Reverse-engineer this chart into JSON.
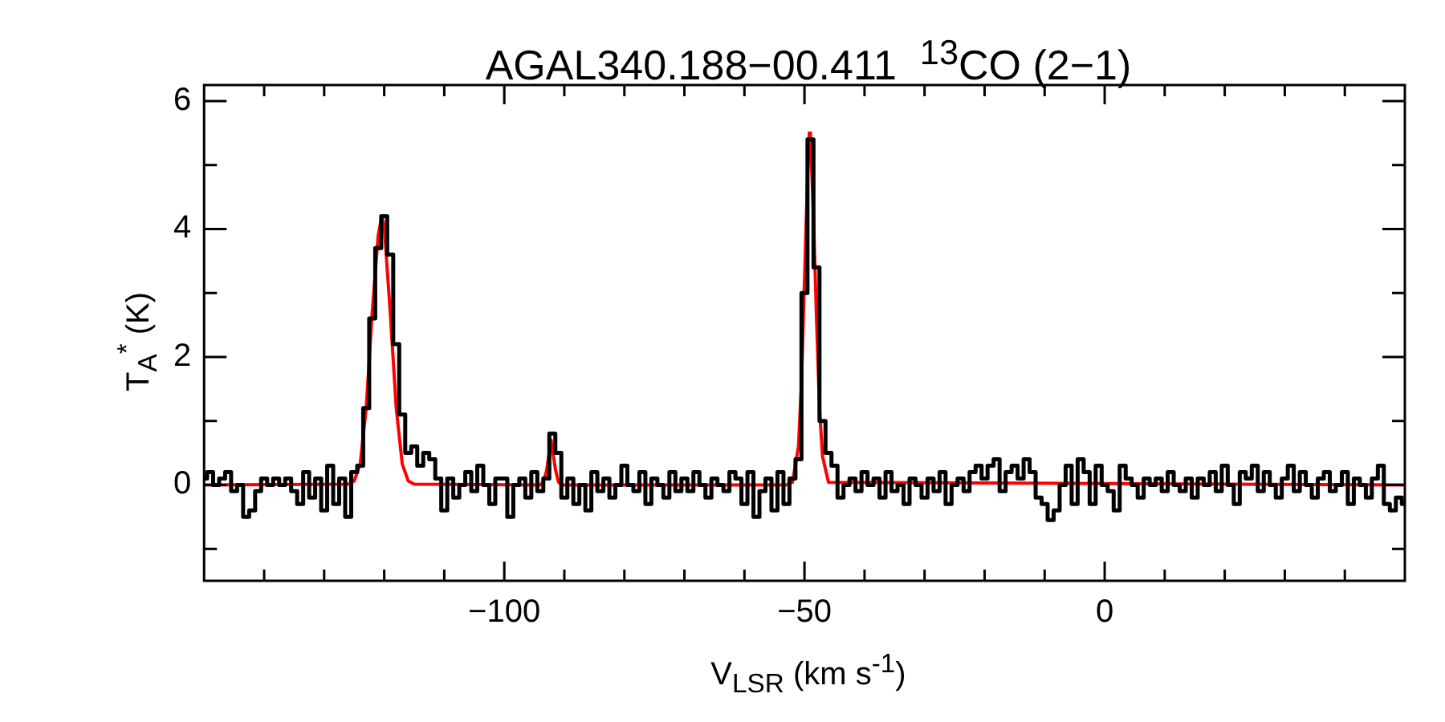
{
  "chart_data": {
    "type": "line",
    "title": "AGAL340.188−00.411  $^{13}$CO (2−1)",
    "xlabel": "V$_{LSR}$ (km s$^{-1}$)",
    "ylabel": "T$_{A}$$^{*}$ (K)",
    "xlim": [
      -150,
      50
    ],
    "ylim": [
      -1.5,
      6.25
    ],
    "xticks": [
      {
        "value": -140,
        "label": null
      },
      {
        "value": -130,
        "label": null
      },
      {
        "value": -120,
        "label": null
      },
      {
        "value": -110,
        "label": null
      },
      {
        "value": -100,
        "label": "−100"
      },
      {
        "value": -90,
        "label": null
      },
      {
        "value": -80,
        "label": null
      },
      {
        "value": -70,
        "label": null
      },
      {
        "value": -60,
        "label": null
      },
      {
        "value": -50,
        "label": "−50"
      },
      {
        "value": -40,
        "label": null
      },
      {
        "value": -30,
        "label": null
      },
      {
        "value": -20,
        "label": null
      },
      {
        "value": -10,
        "label": null
      },
      0,
      {
        "value": 10,
        "label": null
      },
      {
        "value": 20,
        "label": null
      },
      {
        "value": 30,
        "label": null
      },
      {
        "value": 40,
        "label": null
      }
    ],
    "yticks": [
      {
        "value": -1,
        "label": null
      },
      0,
      {
        "value": 1,
        "label": null
      },
      2,
      {
        "value": 3,
        "label": null
      },
      4,
      {
        "value": 5,
        "label": null
      },
      6
    ],
    "series": [
      {
        "type": "step",
        "color": "#000000",
        "x": [
          -150,
          -149,
          -148,
          -147,
          -146,
          -145,
          -144,
          -143,
          -142,
          -141,
          -140,
          -139,
          -138,
          -137,
          -136,
          -135,
          -134,
          -133,
          -132,
          -131,
          -130,
          -129,
          -128,
          -127,
          -126,
          -125,
          -124,
          -123,
          -122,
          -121,
          -120,
          -119,
          -118,
          -117,
          -116,
          -115,
          -114,
          -113,
          -112,
          -111,
          -110,
          -109,
          -108,
          -107,
          -106,
          -105,
          -104,
          -103,
          -102,
          -101,
          -100,
          -99,
          -98,
          -97,
          -96,
          -95,
          -94,
          -93,
          -92,
          -91,
          -90,
          -89,
          -88,
          -87,
          -86,
          -85,
          -84,
          -83,
          -82,
          -81,
          -80,
          -79,
          -78,
          -77,
          -76,
          -75,
          -74,
          -73,
          -72,
          -71,
          -70,
          -69,
          -68,
          -67,
          -66,
          -65,
          -64,
          -63,
          -62,
          -61,
          -60,
          -59,
          -58,
          -57,
          -56,
          -55,
          -54,
          -53,
          -52,
          -51,
          -50,
          -49,
          -48,
          -47,
          -46,
          -45,
          -44,
          -43,
          -42,
          -41,
          -40,
          -39,
          -38,
          -37,
          -36,
          -35,
          -34,
          -33,
          -32,
          -31,
          -30,
          -29,
          -28,
          -27,
          -26,
          -25,
          -24,
          -23,
          -22,
          -21,
          -20,
          -19,
          -18,
          -17,
          -16,
          -15,
          -14,
          -13,
          -12,
          -11,
          -10,
          -9,
          -8,
          -7,
          -6,
          -5,
          -4,
          -3,
          -2,
          -1,
          0,
          1,
          2,
          3,
          4,
          5,
          6,
          7,
          8,
          9,
          10,
          11,
          12,
          13,
          14,
          15,
          16,
          17,
          18,
          19,
          20,
          21,
          22,
          23,
          24,
          25,
          26,
          27,
          28,
          29,
          30,
          31,
          32,
          33,
          34,
          35,
          36,
          37,
          38,
          39,
          40,
          41,
          42,
          43,
          44,
          45,
          46,
          47,
          48,
          49,
          50
        ],
        "values": [
          0.1,
          0.2,
          0.0,
          0.1,
          0.2,
          -0.1,
          0.0,
          -0.5,
          -0.4,
          -0.1,
          0.1,
          0.0,
          0.1,
          0.0,
          0.1,
          -0.1,
          -0.3,
          0.2,
          -0.2,
          0.1,
          -0.4,
          0.3,
          -0.3,
          0.1,
          -0.5,
          0.2,
          0.3,
          1.2,
          2.6,
          3.7,
          4.2,
          3.6,
          2.2,
          1.1,
          0.5,
          0.6,
          0.3,
          0.5,
          0.4,
          0.1,
          -0.4,
          0.1,
          -0.2,
          0.0,
          0.2,
          -0.1,
          0.3,
          0.0,
          -0.3,
          0.1,
          0.1,
          -0.5,
          0.0,
          0.1,
          -0.2,
          0.2,
          -0.1,
          0.1,
          0.8,
          0.5,
          -0.2,
          0.1,
          -0.3,
          0.0,
          -0.4,
          0.2,
          -0.1,
          0.1,
          -0.2,
          0.0,
          0.3,
          0.0,
          -0.1,
          0.2,
          -0.3,
          0.1,
          0.0,
          -0.2,
          0.2,
          -0.1,
          0.1,
          -0.1,
          0.2,
          0.0,
          -0.2,
          0.1,
          0.0,
          -0.1,
          0.2,
          0.1,
          -0.3,
          0.2,
          -0.5,
          -0.1,
          0.1,
          -0.4,
          0.2,
          -0.3,
          0.1,
          0.4,
          3.0,
          5.4,
          3.4,
          1.0,
          0.5,
          0.3,
          -0.2,
          0.0,
          0.1,
          -0.1,
          0.2,
          0.0,
          0.1,
          -0.2,
          0.2,
          -0.1,
          0.0,
          -0.3,
          0.1,
          0.0,
          -0.2,
          0.1,
          -0.1,
          0.2,
          -0.3,
          0.0,
          0.1,
          -0.1,
          0.2,
          0.3,
          0.1,
          0.3,
          0.4,
          -0.1,
          0.2,
          0.3,
          0.1,
          0.4,
          0.2,
          -0.2,
          -0.3,
          -0.55,
          -0.4,
          0.0,
          0.3,
          -0.3,
          0.4,
          0.2,
          -0.3,
          0.3,
          0.0,
          -0.1,
          -0.4,
          0.3,
          0.1,
          0.0,
          -0.2,
          0.1,
          0.0,
          0.1,
          -0.1,
          0.2,
          0.0,
          -0.1,
          0.1,
          -0.2,
          0.1,
          0.0,
          0.2,
          -0.1,
          0.3,
          0.0,
          -0.3,
          0.2,
          0.1,
          0.3,
          -0.1,
          0.2,
          0.0,
          -0.2,
          0.1,
          0.3,
          -0.1,
          0.2,
          0.0,
          -0.2,
          0.1,
          0.2,
          -0.1,
          0.0,
          0.2,
          -0.3,
          0.1,
          0.0,
          -0.2,
          0.1,
          0.3,
          -0.3,
          -0.4,
          -0.2,
          -0.3
        ]
      },
      {
        "type": "line",
        "color": "#ff0000",
        "x": [
          -150,
          -126,
          -125,
          -124,
          -123,
          -122,
          -121,
          -120.4,
          -120,
          -119,
          -118,
          -117,
          -116,
          -115,
          -94,
          -93.5,
          -93,
          -92.2,
          -91.5,
          -91,
          -90.5,
          -53,
          -52,
          -51,
          -50.5,
          -50,
          -49.5,
          -49.2,
          -49,
          -48.5,
          -48,
          -47.5,
          -47,
          -46,
          50
        ],
        "values": [
          0,
          0.01,
          0.06,
          0.33,
          1.2,
          2.7,
          3.9,
          4.2,
          4.05,
          2.7,
          1.2,
          0.33,
          0.06,
          0.01,
          0,
          0.05,
          0.2,
          0.7,
          0.25,
          0.05,
          0,
          0,
          0.04,
          0.6,
          1.6,
          3.2,
          4.8,
          5.5,
          5.4,
          4.2,
          2.6,
          1.2,
          0.45,
          0.04,
          0
        ]
      }
    ]
  }
}
